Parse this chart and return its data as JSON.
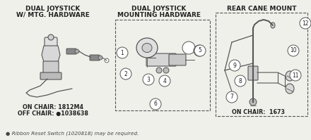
{
  "bg_color": "#f0f0eb",
  "title1": "DUAL JOYSTICK",
  "title1b": "W/ MTG. HARDWARE",
  "title2": "DUAL JOYSTICK",
  "title2b": "MOUNTING HARDWARE",
  "title3": "REAR CANE MOUNT",
  "on_chair1": "ON CHAIR: 1812M4",
  "off_chair1": "OFF CHAIR: ●1038638",
  "on_chair3": "ON CHAIR:  1673",
  "footnote": "● Ribbon Reset Switch (1020818) may be required.",
  "title_fontsize": 6.5,
  "label_fontsize": 5.8,
  "number_fontsize": 5.5,
  "footnote_fontsize": 5.2,
  "line_color": "#555555",
  "text_color": "#222222"
}
